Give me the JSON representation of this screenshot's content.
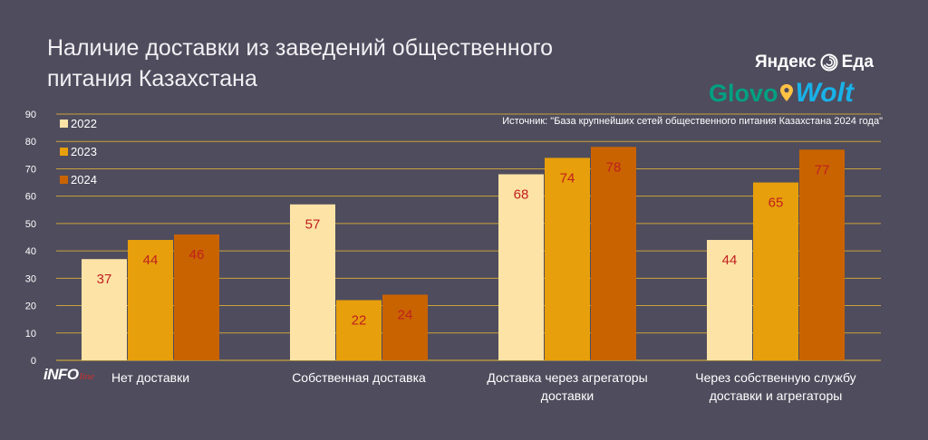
{
  "title_lines": [
    "Наличие доставки из заведений общественного",
    "питания Казахстана"
  ],
  "source": "Источник: \"База крупнейших сетей общественного питания Казахстана 2024 года\"",
  "brands": {
    "yandex": "Яндекс",
    "eda": "Еда",
    "glovo": "Glovo",
    "wolt": "Wolt"
  },
  "watermark": {
    "main": "iNFO",
    "script": "line"
  },
  "colors": {
    "background": "#4f4c5d",
    "grid": "#c8a23a",
    "s2022": "#fde3a6",
    "s2023": "#e79f0b",
    "s2024": "#c96300",
    "value_label": "#c01f1f"
  },
  "chart_data": {
    "type": "bar",
    "title": "Наличие доставки из заведений общественного питания Казахстана",
    "categories": [
      [
        "Нет доставки"
      ],
      [
        "Собственная доставка"
      ],
      [
        "Доставка через агрегаторы",
        "доставки"
      ],
      [
        "Через собственную службу",
        "доставки и агрегаторы"
      ]
    ],
    "series": [
      {
        "name": "2022",
        "values": [
          37,
          57,
          68,
          44
        ]
      },
      {
        "name": "2023",
        "values": [
          44,
          22,
          74,
          65
        ]
      },
      {
        "name": "2024",
        "values": [
          46,
          24,
          78,
          77
        ]
      }
    ],
    "ylim": [
      0,
      90
    ],
    "yticks": [
      0,
      10,
      20,
      30,
      40,
      50,
      60,
      70,
      80,
      90
    ],
    "grid": true,
    "legend": "top-left",
    "data_labels": true
  }
}
